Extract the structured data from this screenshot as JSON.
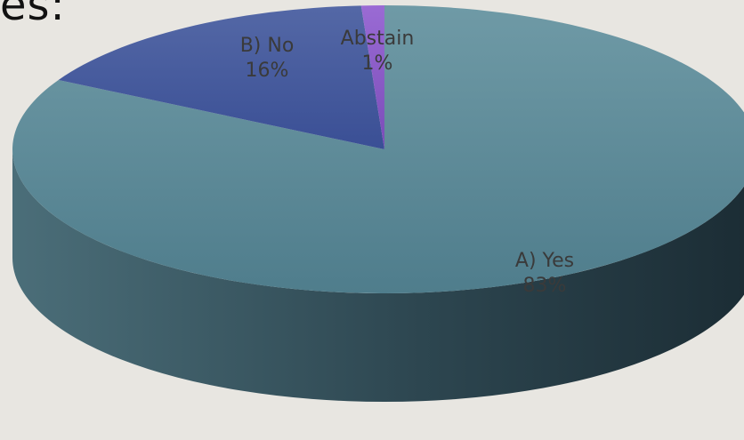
{
  "slide": {
    "title_fragment": "es:"
  },
  "colors": {
    "background": "#e8e6e1",
    "yes_top_light": "#6f9aa6",
    "yes_top_dark": "#4f7d8c",
    "yes_side_light": "#4b6e79",
    "yes_side_dark": "#1b2c34",
    "no_top_light": "#5468a6",
    "no_top_dark": "#3a4f95",
    "abstain": "#8a5bc4",
    "label_text": "#3a3a3a"
  },
  "chart_data": {
    "type": "pie",
    "title": "",
    "start_angle_deg": -90,
    "direction": "clockwise",
    "slices": [
      {
        "name": "A) Yes",
        "value": 83,
        "percent_label": "83%"
      },
      {
        "name": "B) No",
        "value": 16,
        "percent_label": "16%"
      },
      {
        "name": "Abstain",
        "value": 1,
        "percent_label": "1%"
      }
    ]
  }
}
